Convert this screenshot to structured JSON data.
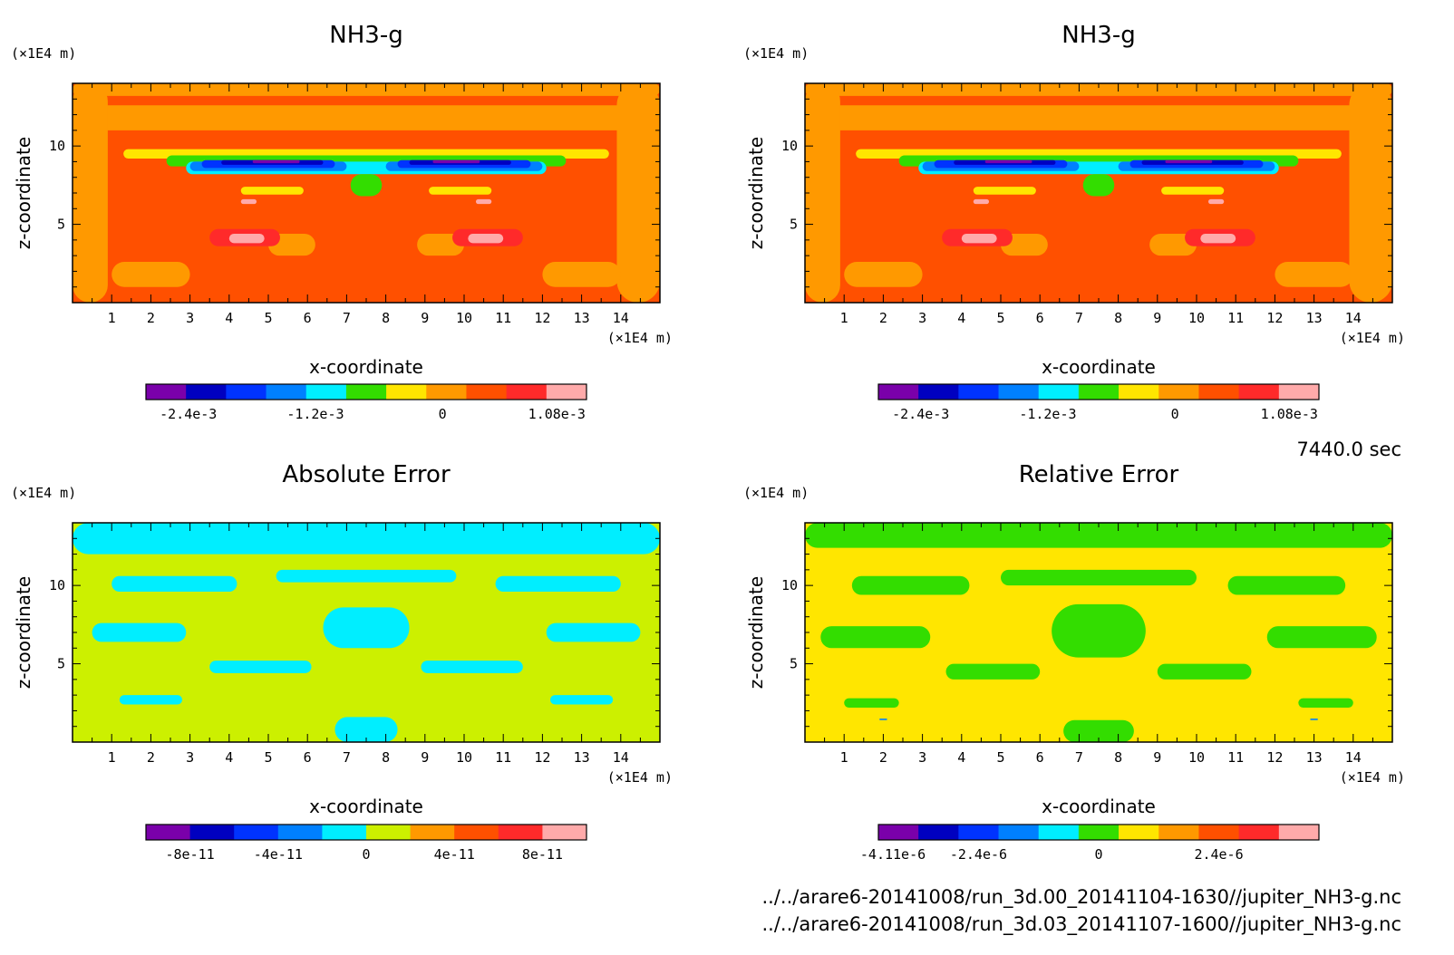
{
  "figure": {
    "time_label": "7440.0 sec",
    "file_paths": [
      "../../arare6-20141008/run_3d.00_20141104-1630//jupiter_NH3-g.nc",
      "../../arare6-20141008/run_3d.03_20141107-1600//jupiter_NH3-g.nc"
    ]
  },
  "chart_data": [
    {
      "type": "heatmap",
      "title": "NH3-g",
      "xlabel": "x-coordinate",
      "ylabel": "z-coordinate",
      "x_unit": "(×1E4 m)",
      "z_unit": "(×1E4 m)",
      "xlim": [
        0,
        15
      ],
      "zlim": [
        0,
        14
      ],
      "x_ticks": [
        "1",
        "2",
        "3",
        "4",
        "5",
        "6",
        "7",
        "8",
        "9",
        "10",
        "11",
        "12",
        "13",
        "14"
      ],
      "z_ticks": [
        "5",
        "10"
      ],
      "background_color": "#ff5000",
      "blobs": [
        {
          "c": "#ff9900",
          "x": 0,
          "z": 11.0,
          "w": 15,
          "h": 1.6
        },
        {
          "c": "#ff9900",
          "x": 0,
          "z": 13.2,
          "w": 15,
          "h": 0.8
        },
        {
          "c": "#ff9900",
          "x": 0,
          "z": 0,
          "w": 0.9,
          "h": 14
        },
        {
          "c": "#ff9900",
          "x": 13.9,
          "z": 0,
          "w": 1.1,
          "h": 14
        },
        {
          "c": "#ff9900",
          "x": 1.0,
          "z": 1.0,
          "w": 2.0,
          "h": 1.6
        },
        {
          "c": "#ff9900",
          "x": 12.0,
          "z": 1.0,
          "w": 2.0,
          "h": 1.6
        },
        {
          "c": "#ff9900",
          "x": 5.0,
          "z": 3.0,
          "w": 1.2,
          "h": 1.4
        },
        {
          "c": "#ff9900",
          "x": 8.8,
          "z": 3.0,
          "w": 1.2,
          "h": 1.4
        },
        {
          "c": "#ffe600",
          "x": 1.3,
          "z": 9.2,
          "w": 12.4,
          "h": 0.6
        },
        {
          "c": "#33dd00",
          "x": 2.4,
          "z": 8.7,
          "w": 10.2,
          "h": 0.7
        },
        {
          "c": "#00eeff",
          "x": 2.9,
          "z": 8.2,
          "w": 9.2,
          "h": 0.8
        },
        {
          "c": "#0080ff",
          "x": 3.0,
          "z": 8.4,
          "w": 4.0,
          "h": 0.6
        },
        {
          "c": "#0080ff",
          "x": 8.0,
          "z": 8.4,
          "w": 4.0,
          "h": 0.6
        },
        {
          "c": "#0033ff",
          "x": 3.3,
          "z": 8.6,
          "w": 3.4,
          "h": 0.5
        },
        {
          "c": "#0033ff",
          "x": 8.3,
          "z": 8.6,
          "w": 3.4,
          "h": 0.5
        },
        {
          "c": "#0000c0",
          "x": 3.8,
          "z": 8.8,
          "w": 2.6,
          "h": 0.3
        },
        {
          "c": "#0000c0",
          "x": 8.6,
          "z": 8.8,
          "w": 2.6,
          "h": 0.3
        },
        {
          "c": "#7a00aa",
          "x": 4.6,
          "z": 8.9,
          "w": 1.2,
          "h": 0.2
        },
        {
          "c": "#7a00aa",
          "x": 9.2,
          "z": 8.9,
          "w": 1.2,
          "h": 0.2
        },
        {
          "c": "#33dd00",
          "x": 7.1,
          "z": 6.8,
          "w": 0.8,
          "h": 1.4
        },
        {
          "c": "#ffe600",
          "x": 4.3,
          "z": 6.9,
          "w": 1.6,
          "h": 0.5
        },
        {
          "c": "#ffe600",
          "x": 9.1,
          "z": 6.9,
          "w": 1.6,
          "h": 0.5
        },
        {
          "c": "#ff2a2a",
          "x": 3.5,
          "z": 3.6,
          "w": 1.8,
          "h": 1.1
        },
        {
          "c": "#ff2a2a",
          "x": 9.7,
          "z": 3.6,
          "w": 1.8,
          "h": 1.1
        },
        {
          "c": "#ffaaaa",
          "x": 4.0,
          "z": 3.8,
          "w": 0.9,
          "h": 0.6
        },
        {
          "c": "#ffaaaa",
          "x": 10.1,
          "z": 3.8,
          "w": 0.9,
          "h": 0.6
        },
        {
          "c": "#ffaaaa",
          "x": 4.3,
          "z": 6.3,
          "w": 0.4,
          "h": 0.3
        },
        {
          "c": "#ffaaaa",
          "x": 10.3,
          "z": 6.3,
          "w": 0.4,
          "h": 0.3
        }
      ],
      "colorbar": {
        "colors": [
          "#7a00aa",
          "#0000c0",
          "#0033ff",
          "#0080ff",
          "#00eeff",
          "#33dd00",
          "#ffe600",
          "#ff9900",
          "#ff5000",
          "#ff2a2a",
          "#ffaaaa"
        ],
        "range": [
          -0.0028,
          0.00136
        ],
        "ticks": [
          {
            "value": -0.0024,
            "label": "-2.4e-3"
          },
          {
            "value": -0.0012,
            "label": "-1.2e-3"
          },
          {
            "value": 0,
            "label": "0"
          },
          {
            "value": 0.00108,
            "label": "1.08e-3"
          }
        ]
      }
    },
    {
      "type": "heatmap",
      "title": "NH3-g",
      "xlabel": "x-coordinate",
      "ylabel": "z-coordinate",
      "x_unit": "(×1E4 m)",
      "z_unit": "(×1E4 m)",
      "xlim": [
        0,
        15
      ],
      "zlim": [
        0,
        14
      ],
      "x_ticks": [
        "1",
        "2",
        "3",
        "4",
        "5",
        "6",
        "7",
        "8",
        "9",
        "10",
        "11",
        "12",
        "13",
        "14"
      ],
      "z_ticks": [
        "5",
        "10"
      ],
      "background_color": "#ff5000",
      "blobs": [
        {
          "c": "#ff9900",
          "x": 0,
          "z": 11.0,
          "w": 15,
          "h": 1.6
        },
        {
          "c": "#ff9900",
          "x": 0,
          "z": 13.2,
          "w": 15,
          "h": 0.8
        },
        {
          "c": "#ff9900",
          "x": 0,
          "z": 0,
          "w": 0.9,
          "h": 14
        },
        {
          "c": "#ff9900",
          "x": 13.9,
          "z": 0,
          "w": 1.1,
          "h": 14
        },
        {
          "c": "#ff9900",
          "x": 1.0,
          "z": 1.0,
          "w": 2.0,
          "h": 1.6
        },
        {
          "c": "#ff9900",
          "x": 12.0,
          "z": 1.0,
          "w": 2.0,
          "h": 1.6
        },
        {
          "c": "#ff9900",
          "x": 5.0,
          "z": 3.0,
          "w": 1.2,
          "h": 1.4
        },
        {
          "c": "#ff9900",
          "x": 8.8,
          "z": 3.0,
          "w": 1.2,
          "h": 1.4
        },
        {
          "c": "#ffe600",
          "x": 1.3,
          "z": 9.2,
          "w": 12.4,
          "h": 0.6
        },
        {
          "c": "#33dd00",
          "x": 2.4,
          "z": 8.7,
          "w": 10.2,
          "h": 0.7
        },
        {
          "c": "#00eeff",
          "x": 2.9,
          "z": 8.2,
          "w": 9.2,
          "h": 0.8
        },
        {
          "c": "#0080ff",
          "x": 3.0,
          "z": 8.4,
          "w": 4.0,
          "h": 0.6
        },
        {
          "c": "#0080ff",
          "x": 8.0,
          "z": 8.4,
          "w": 4.0,
          "h": 0.6
        },
        {
          "c": "#0033ff",
          "x": 3.3,
          "z": 8.6,
          "w": 3.4,
          "h": 0.5
        },
        {
          "c": "#0033ff",
          "x": 8.3,
          "z": 8.6,
          "w": 3.4,
          "h": 0.5
        },
        {
          "c": "#0000c0",
          "x": 3.8,
          "z": 8.8,
          "w": 2.6,
          "h": 0.3
        },
        {
          "c": "#0000c0",
          "x": 8.6,
          "z": 8.8,
          "w": 2.6,
          "h": 0.3
        },
        {
          "c": "#7a00aa",
          "x": 4.6,
          "z": 8.9,
          "w": 1.2,
          "h": 0.2
        },
        {
          "c": "#7a00aa",
          "x": 9.2,
          "z": 8.9,
          "w": 1.2,
          "h": 0.2
        },
        {
          "c": "#33dd00",
          "x": 7.1,
          "z": 6.8,
          "w": 0.8,
          "h": 1.4
        },
        {
          "c": "#ffe600",
          "x": 4.3,
          "z": 6.9,
          "w": 1.6,
          "h": 0.5
        },
        {
          "c": "#ffe600",
          "x": 9.1,
          "z": 6.9,
          "w": 1.6,
          "h": 0.5
        },
        {
          "c": "#ff2a2a",
          "x": 3.5,
          "z": 3.6,
          "w": 1.8,
          "h": 1.1
        },
        {
          "c": "#ff2a2a",
          "x": 9.7,
          "z": 3.6,
          "w": 1.8,
          "h": 1.1
        },
        {
          "c": "#ffaaaa",
          "x": 4.0,
          "z": 3.8,
          "w": 0.9,
          "h": 0.6
        },
        {
          "c": "#ffaaaa",
          "x": 10.1,
          "z": 3.8,
          "w": 0.9,
          "h": 0.6
        },
        {
          "c": "#ffaaaa",
          "x": 4.3,
          "z": 6.3,
          "w": 0.4,
          "h": 0.3
        },
        {
          "c": "#ffaaaa",
          "x": 10.3,
          "z": 6.3,
          "w": 0.4,
          "h": 0.3
        }
      ],
      "colorbar": {
        "colors": [
          "#7a00aa",
          "#0000c0",
          "#0033ff",
          "#0080ff",
          "#00eeff",
          "#33dd00",
          "#ffe600",
          "#ff9900",
          "#ff5000",
          "#ff2a2a",
          "#ffaaaa"
        ],
        "range": [
          -0.0028,
          0.00136
        ],
        "ticks": [
          {
            "value": -0.0024,
            "label": "-2.4e-3"
          },
          {
            "value": -0.0012,
            "label": "-1.2e-3"
          },
          {
            "value": 0,
            "label": "0"
          },
          {
            "value": 0.00108,
            "label": "1.08e-3"
          }
        ]
      }
    },
    {
      "type": "heatmap",
      "title": "Absolute Error",
      "xlabel": "x-coordinate",
      "ylabel": "z-coordinate",
      "x_unit": "(×1E4 m)",
      "z_unit": "(×1E4 m)",
      "xlim": [
        0,
        15
      ],
      "zlim": [
        0,
        14
      ],
      "x_ticks": [
        "1",
        "2",
        "3",
        "4",
        "5",
        "6",
        "7",
        "8",
        "9",
        "10",
        "11",
        "12",
        "13",
        "14"
      ],
      "z_ticks": [
        "5",
        "10"
      ],
      "background_color": "#ccf000",
      "blobs": [
        {
          "c": "#00eeff",
          "x": 0,
          "z": 12.0,
          "w": 15,
          "h": 2.0
        },
        {
          "c": "#00eeff",
          "x": 1.0,
          "z": 9.6,
          "w": 3.2,
          "h": 1.0
        },
        {
          "c": "#00eeff",
          "x": 10.8,
          "z": 9.6,
          "w": 3.2,
          "h": 1.0
        },
        {
          "c": "#00eeff",
          "x": 5.2,
          "z": 10.2,
          "w": 4.6,
          "h": 0.8
        },
        {
          "c": "#00eeff",
          "x": 0.5,
          "z": 6.4,
          "w": 2.4,
          "h": 1.2
        },
        {
          "c": "#00eeff",
          "x": 12.1,
          "z": 6.4,
          "w": 2.4,
          "h": 1.2
        },
        {
          "c": "#00eeff",
          "x": 3.5,
          "z": 4.4,
          "w": 2.6,
          "h": 0.8
        },
        {
          "c": "#00eeff",
          "x": 8.9,
          "z": 4.4,
          "w": 2.6,
          "h": 0.8
        },
        {
          "c": "#00eeff",
          "x": 6.4,
          "z": 6.0,
          "w": 2.2,
          "h": 2.6
        },
        {
          "c": "#00eeff",
          "x": 6.7,
          "z": 0,
          "w": 1.6,
          "h": 1.6
        },
        {
          "c": "#00eeff",
          "x": 1.2,
          "z": 2.4,
          "w": 1.6,
          "h": 0.6
        },
        {
          "c": "#00eeff",
          "x": 12.2,
          "z": 2.4,
          "w": 1.6,
          "h": 0.6
        }
      ],
      "colorbar": {
        "colors": [
          "#7a00aa",
          "#0000c0",
          "#0033ff",
          "#0080ff",
          "#00eeff",
          "#ccf000",
          "#ff9900",
          "#ff5000",
          "#ff2a2a",
          "#ffaaaa"
        ],
        "range": [
          -1e-10,
          1e-10
        ],
        "ticks": [
          {
            "value": -8e-11,
            "label": "-8e-11"
          },
          {
            "value": -4e-11,
            "label": "-4e-11"
          },
          {
            "value": 0,
            "label": "0"
          },
          {
            "value": 4e-11,
            "label": "4e-11"
          },
          {
            "value": 8e-11,
            "label": "8e-11"
          }
        ]
      }
    },
    {
      "type": "heatmap",
      "title": "Relative Error",
      "xlabel": "x-coordinate",
      "ylabel": "z-coordinate",
      "x_unit": "(×1E4 m)",
      "z_unit": "(×1E4 m)",
      "xlim": [
        0,
        15
      ],
      "zlim": [
        0,
        14
      ],
      "x_ticks": [
        "1",
        "2",
        "3",
        "4",
        "5",
        "6",
        "7",
        "8",
        "9",
        "10",
        "11",
        "12",
        "13",
        "14"
      ],
      "z_ticks": [
        "5",
        "10"
      ],
      "background_color": "#ffe600",
      "blobs": [
        {
          "c": "#33dd00",
          "x": 0,
          "z": 12.4,
          "w": 15,
          "h": 1.6
        },
        {
          "c": "#33dd00",
          "x": 1.2,
          "z": 9.4,
          "w": 3.0,
          "h": 1.2
        },
        {
          "c": "#33dd00",
          "x": 10.8,
          "z": 9.4,
          "w": 3.0,
          "h": 1.2
        },
        {
          "c": "#33dd00",
          "x": 5.0,
          "z": 10.0,
          "w": 5.0,
          "h": 1.0
        },
        {
          "c": "#33dd00",
          "x": 0.4,
          "z": 6.0,
          "w": 2.8,
          "h": 1.4
        },
        {
          "c": "#33dd00",
          "x": 11.8,
          "z": 6.0,
          "w": 2.8,
          "h": 1.4
        },
        {
          "c": "#33dd00",
          "x": 3.6,
          "z": 4.0,
          "w": 2.4,
          "h": 1.0
        },
        {
          "c": "#33dd00",
          "x": 9.0,
          "z": 4.0,
          "w": 2.4,
          "h": 1.0
        },
        {
          "c": "#33dd00",
          "x": 6.3,
          "z": 5.4,
          "w": 2.4,
          "h": 3.4
        },
        {
          "c": "#33dd00",
          "x": 6.6,
          "z": 0,
          "w": 1.8,
          "h": 1.4
        },
        {
          "c": "#33dd00",
          "x": 1.0,
          "z": 2.2,
          "w": 1.4,
          "h": 0.6
        },
        {
          "c": "#33dd00",
          "x": 12.6,
          "z": 2.2,
          "w": 1.4,
          "h": 0.6
        },
        {
          "c": "#0080ff",
          "x": 1.9,
          "z": 1.4,
          "w": 0.2,
          "h": 0.1
        },
        {
          "c": "#0080ff",
          "x": 12.9,
          "z": 1.4,
          "w": 0.2,
          "h": 0.1
        }
      ],
      "colorbar": {
        "colors": [
          "#7a00aa",
          "#0000c0",
          "#0033ff",
          "#0080ff",
          "#00eeff",
          "#33dd00",
          "#ffe600",
          "#ff9900",
          "#ff5000",
          "#ff2a2a",
          "#ffaaaa"
        ],
        "range": [
          -4.4e-06,
          4.4e-06
        ],
        "ticks": [
          {
            "value": -4.11e-06,
            "label": "-4.11e-6"
          },
          {
            "value": -2.4e-06,
            "label": "-2.4e-6"
          },
          {
            "value": 0,
            "label": "0"
          },
          {
            "value": 2.4e-06,
            "label": "2.4e-6"
          }
        ]
      }
    }
  ]
}
